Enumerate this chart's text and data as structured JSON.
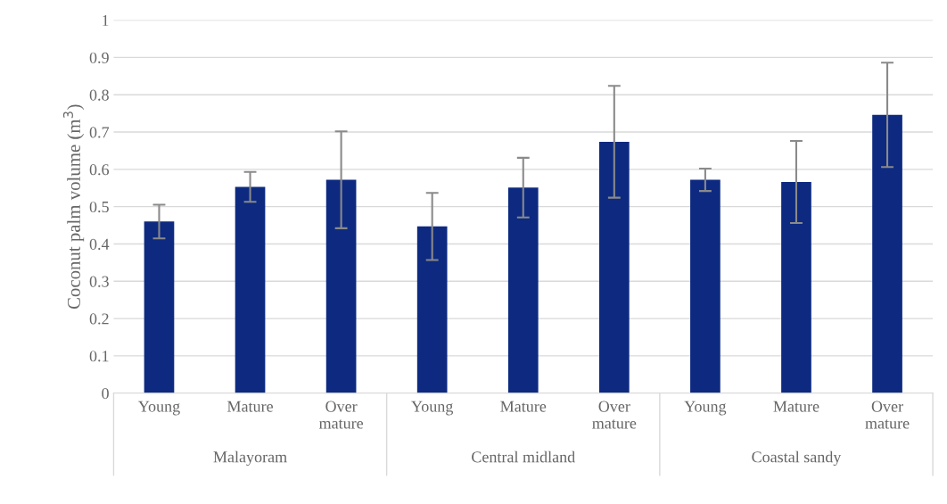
{
  "chart_data": {
    "type": "bar",
    "categories": [
      "Young",
      "Mature",
      "Over\nmature",
      "Young",
      "Mature",
      "Over\nmature",
      "Young",
      "Mature",
      "Over\nmature"
    ],
    "values": [
      0.46,
      0.553,
      0.572,
      0.447,
      0.551,
      0.674,
      0.572,
      0.566,
      0.746
    ],
    "errors": [
      0.045,
      0.04,
      0.13,
      0.09,
      0.08,
      0.15,
      0.03,
      0.11,
      0.14
    ],
    "color": "#0d2a80",
    "ylabel": "Coconut palm volume (m$^{3}$)",
    "ylim": [
      0,
      1
    ],
    "yticks": [
      0,
      0.1,
      0.2,
      0.3,
      0.4,
      0.5,
      0.6,
      0.7,
      0.8,
      0.9,
      1
    ],
    "grid": "y",
    "annotations": [
      "Malayoram",
      "Central midland",
      "Coastal sandy"
    ]
  }
}
